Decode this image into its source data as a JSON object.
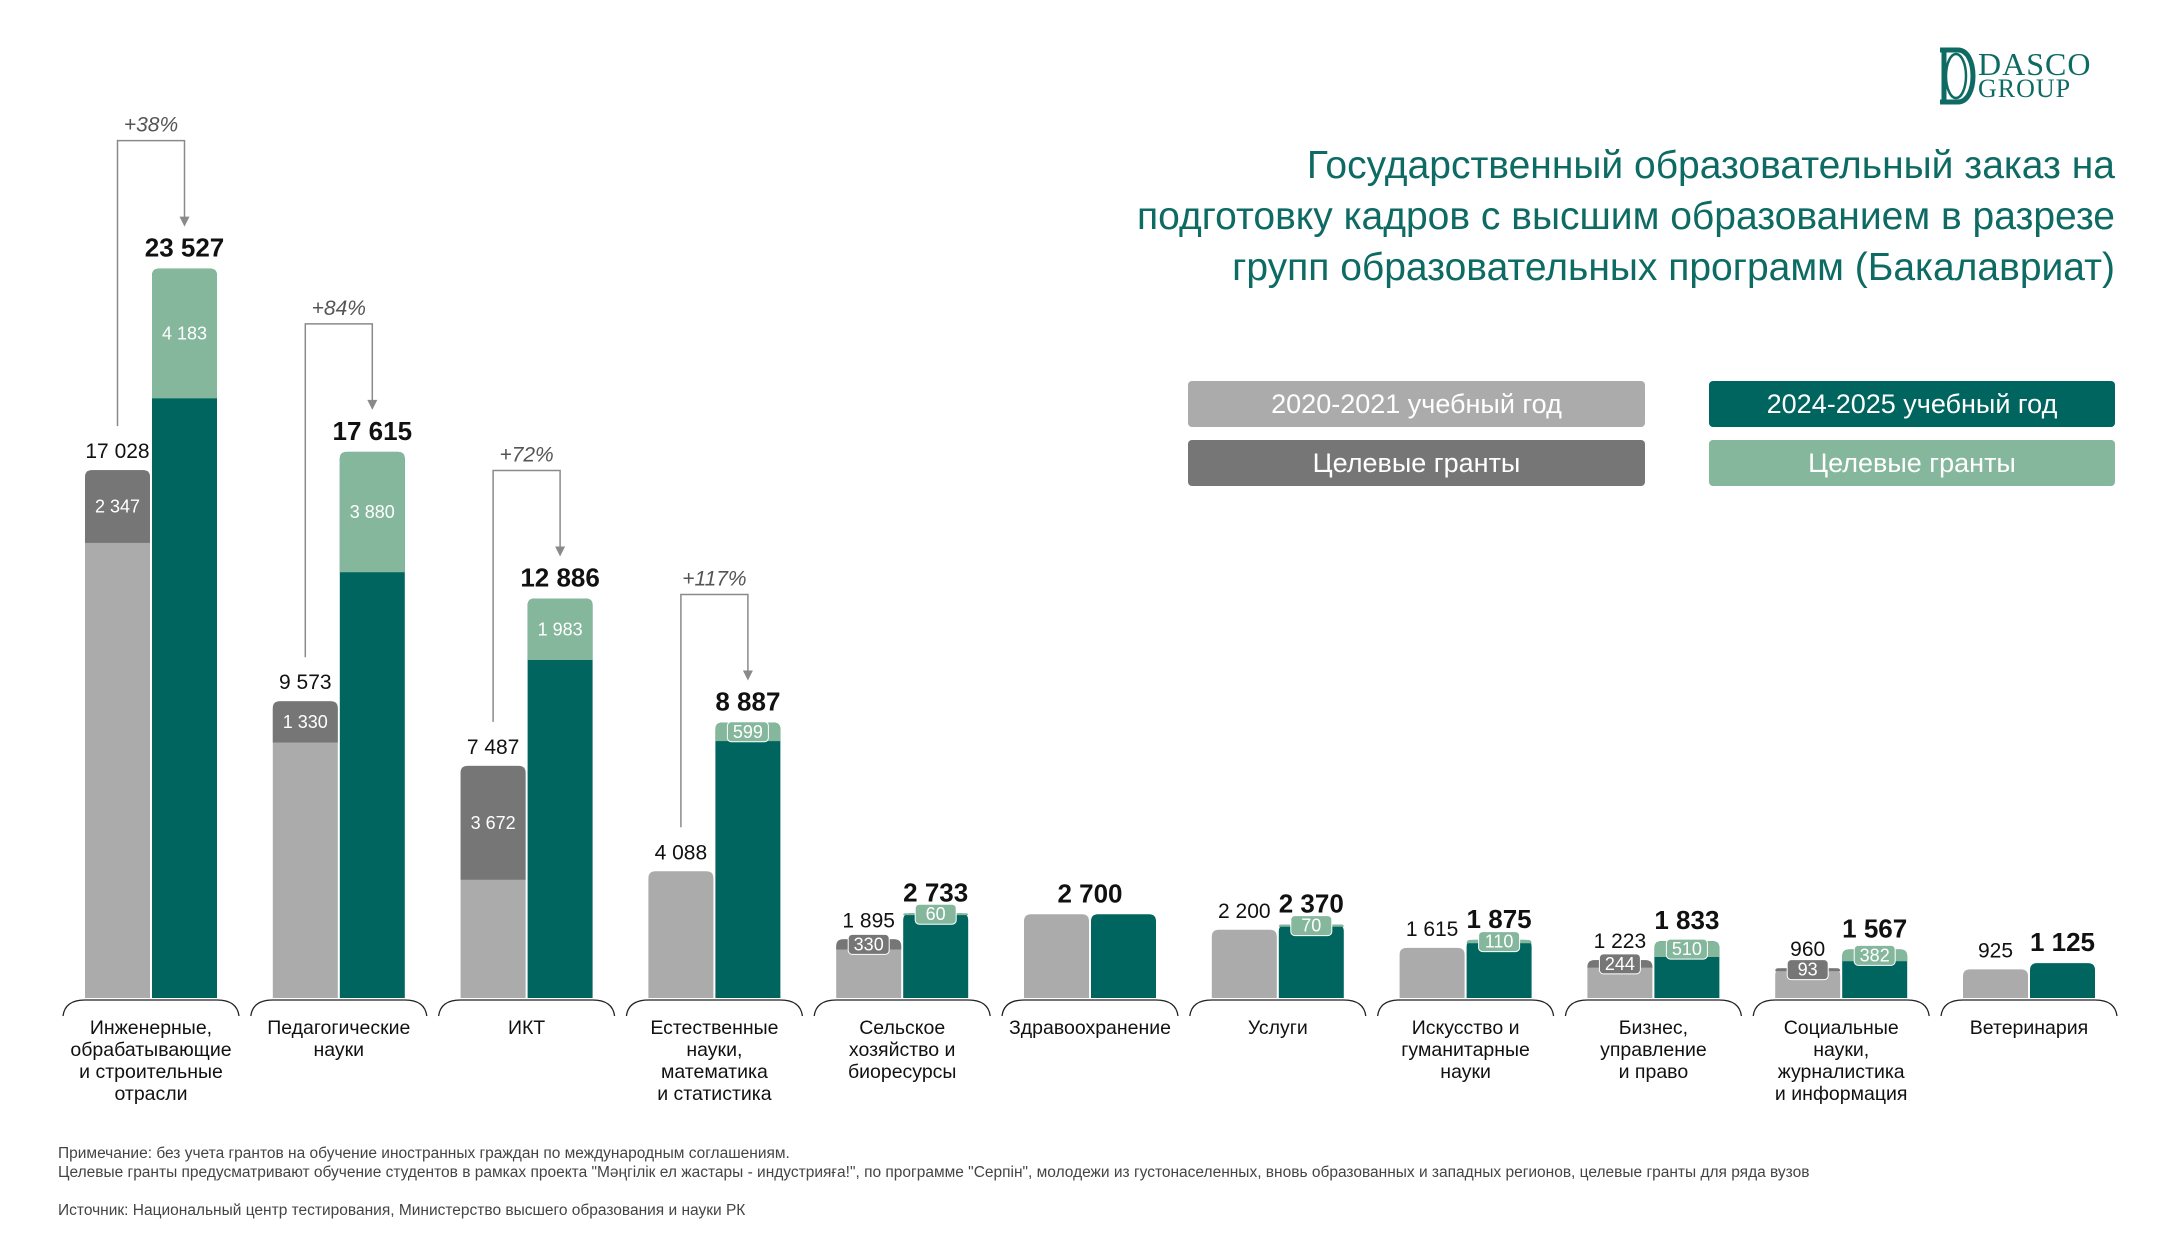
{
  "logo": {
    "text": "DASCO GROUP"
  },
  "title": "Государственный образовательный заказ на подготовку кадров с высшим образованием в разрезе групп образовательных программ (Бакалавриат)",
  "legend": [
    {
      "label": "2020-2021 учебный год",
      "color": "#ababab"
    },
    {
      "label": "Целевые гранты",
      "color": "#767676"
    },
    {
      "label": "2024-2025 учебный год",
      "color": "#00655f"
    },
    {
      "label": "Целевые гранты",
      "color": "#85b79d"
    }
  ],
  "notes": {
    "note1": "Примечание: без учета грантов на обучение иностранных граждан по международным соглашениям.",
    "note2": "Целевые гранты предусматривают обучение студентов в рамках проекта \"Мәңгілік ел жастары - индустрияға!\", по программе \"Серпін\", молодежи из густонаселенных, вновь образованных и западных регионов, целевые гранты для ряда вузов",
    "source": "Источник: Национальный центр тестирования, Министерство высшего образования и науки РК"
  },
  "chart_data": {
    "type": "bar",
    "stacked": true,
    "grid": false,
    "colors": {
      "y2020": "#ababab",
      "y2020_target": "#767676",
      "y2024": "#00655f",
      "y2024_target": "#85b79d",
      "annotation": "#8a8a8a"
    },
    "categories": [
      {
        "label": [
          "Инженерные,",
          "обрабатывающие",
          "и строительные",
          "отрасли"
        ],
        "v2020": 17028,
        "t2020": 2347,
        "v2024": 23527,
        "t2024": 4183,
        "growth": "+38%",
        "total2020_label": "17 028",
        "total2024_label": "23 527",
        "t2020_label": "2 347",
        "t2024_label": "4 183"
      },
      {
        "label": [
          "Педагогические",
          "науки"
        ],
        "v2020": 9573,
        "t2020": 1330,
        "v2024": 17615,
        "t2024": 3880,
        "growth": "+84%",
        "total2020_label": "9 573",
        "total2024_label": "17 615",
        "t2020_label": "1 330",
        "t2024_label": "3 880"
      },
      {
        "label": [
          "ИКТ"
        ],
        "v2020": 7487,
        "t2020": 3672,
        "v2024": 12886,
        "t2024": 1983,
        "growth": "+72%",
        "total2020_label": "7 487",
        "total2024_label": "12 886",
        "t2020_label": "3 672",
        "t2024_label": "1 983"
      },
      {
        "label": [
          "Естественные",
          "науки,",
          "математика",
          "и статистика"
        ],
        "v2020": 4088,
        "t2020": 0,
        "v2024": 8887,
        "t2024": 599,
        "growth": "+117%",
        "total2020_label": "4 088",
        "total2024_label": "8 887",
        "t2020_label": "",
        "t2024_label": "599"
      },
      {
        "label": [
          "Сельское",
          "хозяйство и",
          "биоресурсы"
        ],
        "v2020": 1895,
        "t2020": 330,
        "v2024": 2733,
        "t2024": 60,
        "growth": "",
        "total2020_label": "1 895",
        "total2024_label": "2 733",
        "t2020_label": "330",
        "t2024_label": "60"
      },
      {
        "label": [
          "Здравоохранение"
        ],
        "v2020": 2700,
        "t2020": 0,
        "v2024": 2700,
        "t2024": 0,
        "growth": "",
        "total2020_label": "",
        "total2024_label": "2 700",
        "t2020_label": "",
        "t2024_label": "",
        "shared_label": true
      },
      {
        "label": [
          "Услуги"
        ],
        "v2020": 2200,
        "t2020": 0,
        "v2024": 2370,
        "t2024": 70,
        "growth": "",
        "total2020_label": "2 200",
        "total2024_label": "2 370",
        "t2020_label": "",
        "t2024_label": "70"
      },
      {
        "label": [
          "Искусство и",
          "гуманитарные",
          "науки"
        ],
        "v2020": 1615,
        "t2020": 0,
        "v2024": 1875,
        "t2024": 110,
        "growth": "",
        "total2020_label": "1 615",
        "total2024_label": "1 875",
        "t2020_label": "",
        "t2024_label": "110"
      },
      {
        "label": [
          "Бизнес,",
          "управление",
          "и право"
        ],
        "v2020": 1223,
        "t2020": 244,
        "v2024": 1833,
        "t2024": 510,
        "growth": "",
        "total2020_label": "1 223",
        "total2024_label": "1 833",
        "t2020_label": "244",
        "t2024_label": "510"
      },
      {
        "label": [
          "Социальные",
          "науки,",
          "журналистика",
          "и информация"
        ],
        "v2020": 960,
        "t2020": 93,
        "v2024": 1567,
        "t2024": 382,
        "growth": "",
        "total2020_label": "960",
        "total2024_label": "1 567",
        "t2020_label": "93",
        "t2024_label": "382"
      },
      {
        "label": [
          "Ветеринария"
        ],
        "v2020": 925,
        "t2020": 0,
        "v2024": 1125,
        "t2024": 0,
        "growth": "",
        "total2020_label": "925",
        "total2024_label": "1 125",
        "t2020_label": "",
        "t2024_label": ""
      }
    ]
  }
}
